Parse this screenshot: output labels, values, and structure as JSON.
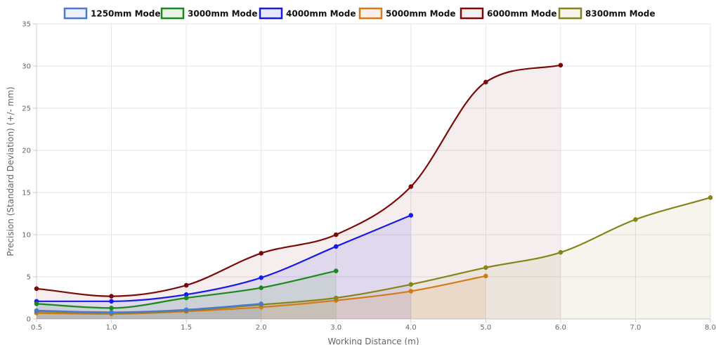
{
  "chart_data": {
    "type": "line",
    "title": "",
    "xlabel": "Working Distance (m)",
    "ylabel": "Precision (Standard Deviation) (+/- mm)",
    "xlim": [
      0.5,
      8.0
    ],
    "ylim": [
      0,
      35
    ],
    "x_ticks": [
      "0.5",
      "1.0",
      "1.5",
      "2.0",
      "3.0",
      "4.0",
      "5.0",
      "6.0",
      "7.0",
      "8.0"
    ],
    "y_ticks": [
      "0",
      "5",
      "10",
      "15",
      "20",
      "25",
      "30",
      "35"
    ],
    "grid": true,
    "legend_position": "top",
    "series": [
      {
        "name": "1250mm Mode",
        "color": "#4a78d6",
        "fill": "rgba(74,120,214,0.10)",
        "points": [
          [
            0.5,
            1.0
          ],
          [
            1.0,
            0.8
          ],
          [
            1.5,
            1.1
          ],
          [
            2.0,
            1.8
          ]
        ]
      },
      {
        "name": "3000mm Mode",
        "color": "#1a8a1a",
        "fill": "rgba(26,138,26,0.10)",
        "points": [
          [
            0.5,
            1.8
          ],
          [
            1.0,
            1.3
          ],
          [
            1.5,
            2.5
          ],
          [
            2.0,
            3.7
          ],
          [
            3.0,
            5.7
          ]
        ]
      },
      {
        "name": "4000mm Mode",
        "color": "#1a1ae6",
        "fill": "rgba(26,26,230,0.10)",
        "points": [
          [
            0.5,
            2.1
          ],
          [
            1.0,
            2.1
          ],
          [
            1.5,
            2.9
          ],
          [
            2.0,
            4.9
          ],
          [
            3.0,
            8.6
          ],
          [
            4.0,
            12.3
          ]
        ]
      },
      {
        "name": "5000mm Mode",
        "color": "#d47a1a",
        "fill": "rgba(212,122,26,0.10)",
        "points": [
          [
            0.5,
            0.7
          ],
          [
            1.0,
            0.6
          ],
          [
            1.5,
            0.9
          ],
          [
            2.0,
            1.4
          ],
          [
            3.0,
            2.2
          ],
          [
            4.0,
            3.3
          ],
          [
            5.0,
            5.1
          ]
        ]
      },
      {
        "name": "6000mm Mode",
        "color": "#7a0a0a",
        "fill": "rgba(122,10,10,0.07)",
        "points": [
          [
            0.5,
            3.6
          ],
          [
            1.0,
            2.7
          ],
          [
            1.5,
            4.0
          ],
          [
            2.0,
            7.8
          ],
          [
            3.0,
            10.0
          ],
          [
            4.0,
            15.7
          ],
          [
            5.0,
            28.1
          ],
          [
            6.0,
            30.1
          ]
        ]
      },
      {
        "name": "8300mm Mode",
        "color": "#85851a",
        "fill": "rgba(133,133,26,0.08)",
        "points": [
          [
            0.5,
            0.9
          ],
          [
            1.0,
            0.7
          ],
          [
            1.5,
            1.0
          ],
          [
            2.0,
            1.7
          ],
          [
            3.0,
            2.5
          ],
          [
            4.0,
            4.1
          ],
          [
            5.0,
            6.1
          ],
          [
            6.0,
            7.9
          ],
          [
            7.0,
            11.8
          ],
          [
            8.0,
            14.4
          ]
        ]
      }
    ]
  }
}
